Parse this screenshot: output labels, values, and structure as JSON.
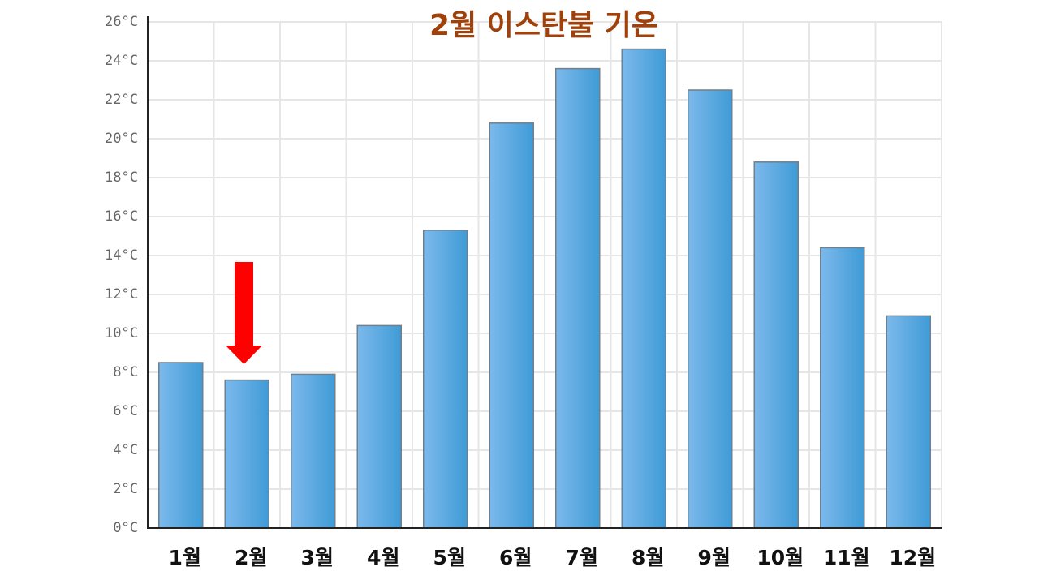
{
  "chart_data": {
    "type": "bar",
    "title": "2월 이스탄불 기온",
    "categories": [
      "1월",
      "2월",
      "3월",
      "4월",
      "5월",
      "6월",
      "7월",
      "8월",
      "9월",
      "10월",
      "11월",
      "12월"
    ],
    "values": [
      8.5,
      7.6,
      7.9,
      10.4,
      15.3,
      20.8,
      23.6,
      24.6,
      22.5,
      18.8,
      14.4,
      10.9
    ],
    "color": "#3f9bd6",
    "ylim": [
      0,
      26
    ],
    "yticks": [
      {
        "value": 0,
        "label": "0°C"
      },
      {
        "value": 2,
        "label": "2°C"
      },
      {
        "value": 4,
        "label": "4°C"
      },
      {
        "value": 6,
        "label": "6°C"
      },
      {
        "value": 8,
        "label": "8°C"
      },
      {
        "value": 10,
        "label": "10°C"
      },
      {
        "value": 12,
        "label": "12°C"
      },
      {
        "value": 14,
        "label": "14°C"
      },
      {
        "value": 16,
        "label": "16°C"
      },
      {
        "value": 18,
        "label": "18°C"
      },
      {
        "value": 20,
        "label": "20°C"
      },
      {
        "value": 22,
        "label": "22°C"
      },
      {
        "value": 24,
        "label": "24°C"
      },
      {
        "value": 26,
        "label": "26°C"
      }
    ],
    "grid": true
  }
}
